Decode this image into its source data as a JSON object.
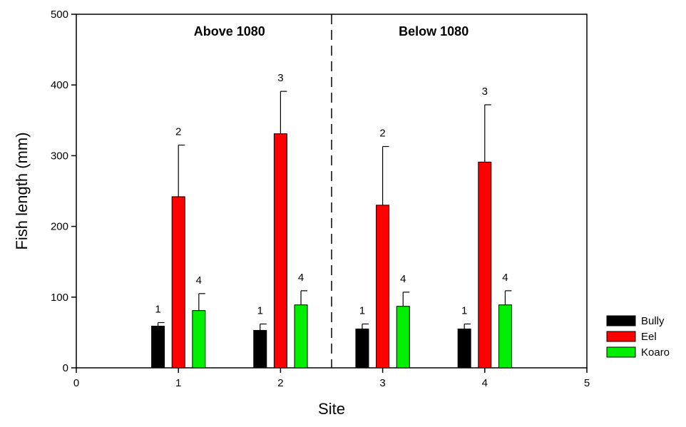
{
  "chart_data": {
    "type": "bar",
    "xlabel": "Site",
    "ylabel": "Fish length (mm)",
    "xlim": [
      0,
      5
    ],
    "ylim": [
      0,
      500
    ],
    "x_ticks": [
      "0",
      "1",
      "2",
      "3",
      "4",
      "5"
    ],
    "y_ticks": [
      "0",
      "100",
      "200",
      "300",
      "400",
      "500"
    ],
    "divider_x": 2.5,
    "regions": [
      {
        "label": "Above 1080",
        "center_x": 1.5
      },
      {
        "label": "Below 1080",
        "center_x": 3.5
      }
    ],
    "categories": [
      1,
      2,
      3,
      4
    ],
    "series": [
      {
        "name": "Bully",
        "color": "#000000",
        "offset": -0.2,
        "values": [
          59,
          53,
          55,
          55
        ],
        "error": [
          64,
          62,
          62,
          62
        ],
        "labels": [
          "1",
          "1",
          "1",
          "1"
        ]
      },
      {
        "name": "Eel",
        "color": "#ff0000",
        "offset": 0,
        "values": [
          242,
          331,
          230,
          291
        ],
        "error": [
          315,
          391,
          313,
          372
        ],
        "labels": [
          "2",
          "3",
          "2",
          "3"
        ]
      },
      {
        "name": "Koaro",
        "color": "#00ee00",
        "offset": 0.2,
        "values": [
          81,
          89,
          87,
          89
        ],
        "error": [
          105,
          109,
          107,
          109
        ],
        "labels": [
          "4",
          "4",
          "4",
          "4"
        ]
      }
    ],
    "legend_position": "right"
  }
}
